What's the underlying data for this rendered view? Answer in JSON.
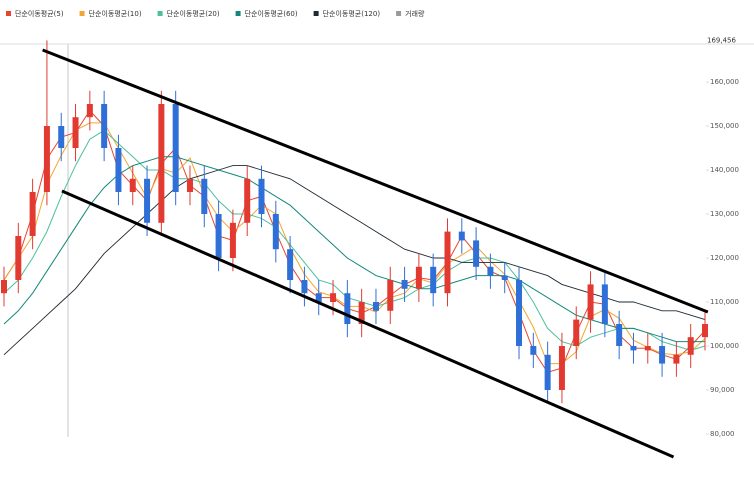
{
  "chart_data": {
    "type": "candlestick",
    "legend": [
      {
        "name": "단순이동평균(5)",
        "color": "#e8452f"
      },
      {
        "name": "단순이동평균(10)",
        "color": "#f2a630"
      },
      {
        "name": "단순이동평균(20)",
        "color": "#4cbf9b"
      },
      {
        "name": "단순이동평균(60)",
        "color": "#14897a"
      },
      {
        "name": "단순이동평균(120)",
        "color": "#1f2a33"
      },
      {
        "name": "거래량",
        "color": "#9a9a9a"
      }
    ],
    "up_color": "#e23a30",
    "down_color": "#2f6fd8",
    "xlim": [
      0,
      49
    ],
    "ylim": [
      71000,
      170000
    ],
    "yticks": [
      {
        "value": 80000,
        "label": "80,000"
      },
      {
        "value": 90000,
        "label": "90,000"
      },
      {
        "value": 100000,
        "label": "100,000"
      },
      {
        "value": 110000,
        "label": "110,000"
      },
      {
        "value": 120000,
        "label": "120,000"
      },
      {
        "value": 130000,
        "label": "130,000"
      },
      {
        "value": 140000,
        "label": "140,000"
      },
      {
        "value": 150000,
        "label": "150,000"
      },
      {
        "value": 160000,
        "label": "160,000"
      }
    ],
    "high_label": {
      "value": 169456,
      "label": "169,456"
    },
    "open": [
      112000,
      115000,
      125000,
      135000,
      150000,
      145000,
      152000,
      155000,
      145000,
      135000,
      138000,
      128000,
      155000,
      135000,
      138000,
      130000,
      120000,
      128000,
      138000,
      130000,
      122000,
      115000,
      112000,
      110000,
      112000,
      105000,
      110000,
      108000,
      115000,
      113000,
      118000,
      112000,
      126000,
      124000,
      118000,
      116000,
      115000,
      100000,
      98000,
      90000,
      100000,
      106000,
      114000,
      105000,
      100000,
      99000,
      100000,
      96000,
      98000,
      102000
    ],
    "high": [
      118000,
      128000,
      138000,
      169456,
      153000,
      155000,
      158000,
      158000,
      148000,
      141000,
      141000,
      158000,
      158000,
      141000,
      141000,
      133000,
      131000,
      141000,
      141000,
      133000,
      125000,
      118000,
      115000,
      115000,
      115000,
      113000,
      113000,
      118000,
      118000,
      121000,
      121000,
      129000,
      129000,
      127000,
      121000,
      119000,
      118000,
      103000,
      101000,
      103000,
      109000,
      117000,
      117000,
      108000,
      103000,
      103000,
      103000,
      101000,
      105000,
      108000
    ],
    "low": [
      109000,
      112000,
      122000,
      132000,
      142000,
      142000,
      149000,
      142000,
      132000,
      132000,
      125000,
      125000,
      132000,
      132000,
      127000,
      117000,
      117000,
      125000,
      127000,
      119000,
      112000,
      109000,
      107000,
      107000,
      102000,
      102000,
      105000,
      105000,
      110000,
      110000,
      109000,
      109000,
      121000,
      115000,
      113000,
      112000,
      97000,
      95000,
      87000,
      87000,
      97000,
      103000,
      102000,
      97000,
      96000,
      96000,
      93000,
      93000,
      95000,
      99000
    ],
    "close": [
      115000,
      125000,
      135000,
      150000,
      145000,
      152000,
      155000,
      145000,
      135000,
      138000,
      128000,
      155000,
      135000,
      138000,
      130000,
      120000,
      128000,
      138000,
      130000,
      122000,
      115000,
      112000,
      110000,
      112000,
      105000,
      110000,
      108000,
      115000,
      113000,
      118000,
      112000,
      126000,
      124000,
      118000,
      116000,
      115000,
      100000,
      98000,
      90000,
      100000,
      106000,
      114000,
      105000,
      100000,
      99000,
      100000,
      96000,
      98000,
      102000,
      105000
    ],
    "series": [
      {
        "color": "#e8452f",
        "values": [
          115000,
          120000,
          130000,
          142500,
          147500,
          148500,
          153500,
          150000,
          140000,
          136500,
          133000,
          141500,
          145000,
          136500,
          134000,
          125000,
          124000,
          133000,
          134000,
          126000,
          118500,
          113500,
          111000,
          111000,
          108500,
          107500,
          109000,
          111500,
          114000,
          115500,
          115000,
          119000,
          125000,
          121000,
          117000,
          115500,
          107500,
          99000,
          94000,
          95000,
          103000,
          110000,
          109500,
          102500,
          99500,
          99500,
          98000,
          97000,
          100000,
          103500
        ]
      },
      {
        "color": "#f2a630",
        "values": [
          115000,
          120000,
          125000,
          136700,
          143300,
          149000,
          150700,
          150700,
          145000,
          139300,
          133700,
          140300,
          139300,
          142700,
          134300,
          129300,
          126000,
          128700,
          132000,
          130000,
          122300,
          116300,
          112300,
          111300,
          109000,
          109000,
          107700,
          111000,
          112000,
          115300,
          114300,
          118700,
          120700,
          122700,
          119300,
          116300,
          110300,
          104300,
          96000,
          96000,
          98700,
          106700,
          108300,
          106300,
          101300,
          99700,
          98300,
          98000,
          98700,
          101700
        ]
      },
      {
        "color": "#4cbf9b",
        "values": [
          112000,
          115000,
          120000,
          126000,
          134000,
          141000,
          147000,
          149000,
          146000,
          143000,
          140000,
          140000,
          138000,
          138000,
          137000,
          133000,
          130000,
          130000,
          129000,
          127000,
          123000,
          119000,
          115000,
          114000,
          111000,
          110000,
          109000,
          110000,
          111000,
          113000,
          114000,
          117000,
          119000,
          120000,
          120000,
          119000,
          115000,
          110000,
          104000,
          101000,
          100000,
          102000,
          103000,
          104000,
          104000,
          103000,
          101000,
          100000,
          99000,
          100000
        ]
      },
      {
        "color": "#14897a",
        "values": [
          105000,
          108000,
          112000,
          117000,
          122000,
          127000,
          132000,
          136000,
          139000,
          141000,
          142000,
          143000,
          143000,
          142000,
          141000,
          140000,
          139000,
          138000,
          136000,
          134000,
          132000,
          129000,
          126000,
          123000,
          120000,
          118000,
          116000,
          115000,
          114000,
          113000,
          113000,
          114000,
          115000,
          116000,
          116000,
          116000,
          115000,
          113000,
          111000,
          109000,
          107000,
          106000,
          105000,
          104000,
          104000,
          103000,
          102000,
          101000,
          101000,
          101000
        ]
      },
      {
        "color": "#1f2a33",
        "values": [
          98000,
          101000,
          104000,
          107000,
          110000,
          113000,
          117000,
          121000,
          124000,
          127000,
          130000,
          133000,
          136000,
          138000,
          139000,
          140000,
          141000,
          141000,
          140000,
          139000,
          138000,
          136000,
          134000,
          132000,
          130000,
          128000,
          126000,
          124000,
          122000,
          121000,
          120000,
          120000,
          119000,
          119000,
          119000,
          119000,
          118000,
          117000,
          116000,
          114000,
          113000,
          112000,
          111000,
          110000,
          110000,
          109000,
          108000,
          108000,
          107000,
          106000
        ]
      }
    ],
    "trend_lines": [
      {
        "x": [
          2.7,
          49.2
        ],
        "y": [
          167273,
          107727
        ]
      },
      {
        "x": [
          4.05,
          46.8
        ],
        "y": [
          135227,
          74773
        ]
      }
    ]
  }
}
